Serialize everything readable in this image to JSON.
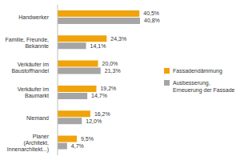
{
  "chart_data": {
    "type": "bar",
    "orientation": "horizontal",
    "categories": [
      "Handwerker",
      "Familie, Freunde, Bekannte",
      "Verkäufer im Baustoffhandel",
      "Verkäufer im Baumarkt",
      "Niemand",
      "Planer (Architekt, Innenarchitekt...)"
    ],
    "series": [
      {
        "name": "Fassadendämmung",
        "color": "#f0a30a",
        "values": [
          40.5,
          24.3,
          20.0,
          19.2,
          16.2,
          9.5
        ],
        "value_labels": [
          "40,5%",
          "24,3%",
          "20,0%",
          "19,2%",
          "16,2%",
          "9,5%"
        ]
      },
      {
        "name": "Ausbesserung, Erneuerung der Fassade",
        "color": "#a5a5a5",
        "values": [
          40.8,
          14.1,
          21.3,
          14.7,
          12.0,
          4.7
        ],
        "value_labels": [
          "40,8%",
          "14,1%",
          "21,3%",
          "14,7%",
          "12,0%",
          "4,7%"
        ]
      }
    ],
    "data_labels": true,
    "tick_labels": "y",
    "legend": "right",
    "grid": false
  }
}
